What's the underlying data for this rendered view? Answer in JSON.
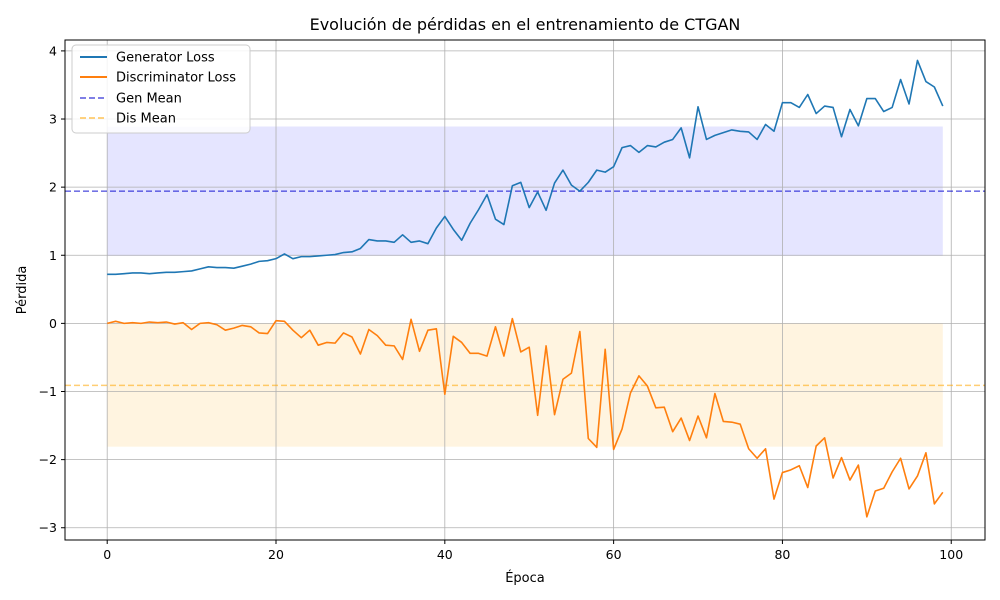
{
  "chart_data": {
    "type": "line",
    "title": "Evolución de pérdidas en el entrenamiento de CTGAN",
    "xlabel": "Época",
    "ylabel": "Pérdida",
    "xlim": [
      -5,
      104
    ],
    "ylim": [
      -3.18,
      4.16
    ],
    "xticks": [
      0,
      20,
      40,
      60,
      80,
      100
    ],
    "yticks": [
      -3,
      -2,
      -1,
      0,
      1,
      2,
      3,
      4
    ],
    "xtick_labels": [
      "0",
      "20",
      "40",
      "60",
      "80",
      "100"
    ],
    "ytick_labels": [
      "−3",
      "−2",
      "−1",
      "0",
      "1",
      "2",
      "3",
      "4"
    ],
    "grid": true,
    "legend_position": "top-left",
    "x": [
      0,
      1,
      2,
      3,
      4,
      5,
      6,
      7,
      8,
      9,
      10,
      11,
      12,
      13,
      14,
      15,
      16,
      17,
      18,
      19,
      20,
      21,
      22,
      23,
      24,
      25,
      26,
      27,
      28,
      29,
      30,
      31,
      32,
      33,
      34,
      35,
      36,
      37,
      38,
      39,
      40,
      41,
      42,
      43,
      44,
      45,
      46,
      47,
      48,
      49,
      50,
      51,
      52,
      53,
      54,
      55,
      56,
      57,
      58,
      59,
      60,
      61,
      62,
      63,
      64,
      65,
      66,
      67,
      68,
      69,
      70,
      71,
      72,
      73,
      74,
      75,
      76,
      77,
      78,
      79,
      80,
      81,
      82,
      83,
      84,
      85,
      86,
      87,
      88,
      89,
      90,
      91,
      92,
      93,
      94,
      95,
      96,
      97,
      98,
      99
    ],
    "series": [
      {
        "name": "Generator Loss",
        "color": "#1f77b4",
        "values": [
          0.72,
          0.72,
          0.73,
          0.74,
          0.74,
          0.73,
          0.74,
          0.75,
          0.75,
          0.76,
          0.77,
          0.8,
          0.83,
          0.82,
          0.82,
          0.81,
          0.84,
          0.87,
          0.91,
          0.92,
          0.95,
          1.02,
          0.95,
          0.98,
          0.98,
          0.99,
          1.0,
          1.01,
          1.04,
          1.05,
          1.1,
          1.23,
          1.21,
          1.21,
          1.19,
          1.3,
          1.19,
          1.21,
          1.17,
          1.4,
          1.57,
          1.38,
          1.22,
          1.47,
          1.67,
          1.89,
          1.53,
          1.45,
          2.02,
          2.07,
          1.7,
          1.93,
          1.66,
          2.06,
          2.25,
          2.03,
          1.94,
          2.07,
          2.25,
          2.22,
          2.3,
          2.58,
          2.61,
          2.51,
          2.61,
          2.59,
          2.66,
          2.7,
          2.87,
          2.43,
          3.18,
          2.7,
          2.76,
          2.8,
          2.84,
          2.82,
          2.81,
          2.7,
          2.92,
          2.82,
          3.24,
          3.24,
          3.17,
          3.36,
          3.08,
          3.19,
          3.17,
          2.74,
          3.14,
          2.9,
          3.3,
          3.3,
          3.11,
          3.17,
          3.58,
          3.22,
          3.86,
          3.55,
          3.47,
          3.19
        ]
      },
      {
        "name": "Discriminator Loss",
        "color": "#ff7f0e",
        "values": [
          0.0,
          0.03,
          0.0,
          0.01,
          0.0,
          0.02,
          0.01,
          0.02,
          -0.01,
          0.01,
          -0.09,
          0.0,
          0.01,
          -0.02,
          -0.1,
          -0.07,
          -0.03,
          -0.05,
          -0.14,
          -0.15,
          0.04,
          0.03,
          -0.1,
          -0.21,
          -0.1,
          -0.32,
          -0.28,
          -0.29,
          -0.14,
          -0.2,
          -0.45,
          -0.09,
          -0.18,
          -0.32,
          -0.33,
          -0.53,
          0.06,
          -0.41,
          -0.1,
          -0.08,
          -1.04,
          -0.19,
          -0.28,
          -0.44,
          -0.44,
          -0.48,
          -0.05,
          -0.48,
          0.07,
          -0.42,
          -0.35,
          -1.35,
          -0.33,
          -1.34,
          -0.82,
          -0.73,
          -0.12,
          -1.69,
          -1.82,
          -0.38,
          -1.85,
          -1.55,
          -1.02,
          -0.77,
          -0.92,
          -1.24,
          -1.23,
          -1.59,
          -1.39,
          -1.72,
          -1.36,
          -1.68,
          -1.03,
          -1.44,
          -1.45,
          -1.48,
          -1.84,
          -1.98,
          -1.84,
          -2.58,
          -2.19,
          -2.15,
          -2.09,
          -2.41,
          -1.8,
          -1.68,
          -2.27,
          -1.97,
          -2.3,
          -2.08,
          -2.84,
          -2.46,
          -2.42,
          -2.18,
          -1.98,
          -2.43,
          -2.24,
          -1.9,
          -2.65,
          -2.48
        ]
      }
    ],
    "reference_lines": [
      {
        "name": "Gen Mean",
        "y": 1.94,
        "color": "#0000cd",
        "style": "dashed"
      },
      {
        "name": "Dis Mean",
        "y": -0.91,
        "color": "#ffa500",
        "style": "dashed"
      }
    ],
    "bands": [
      {
        "y_low": 0.99,
        "y_high": 2.89,
        "x_start": 0,
        "x_end": 99,
        "color": "#0000ff",
        "opacity": 0.1
      },
      {
        "y_low": -1.81,
        "y_high": 0.0,
        "x_start": 0,
        "x_end": 99,
        "color": "#ffa500",
        "opacity": 0.12
      }
    ]
  }
}
